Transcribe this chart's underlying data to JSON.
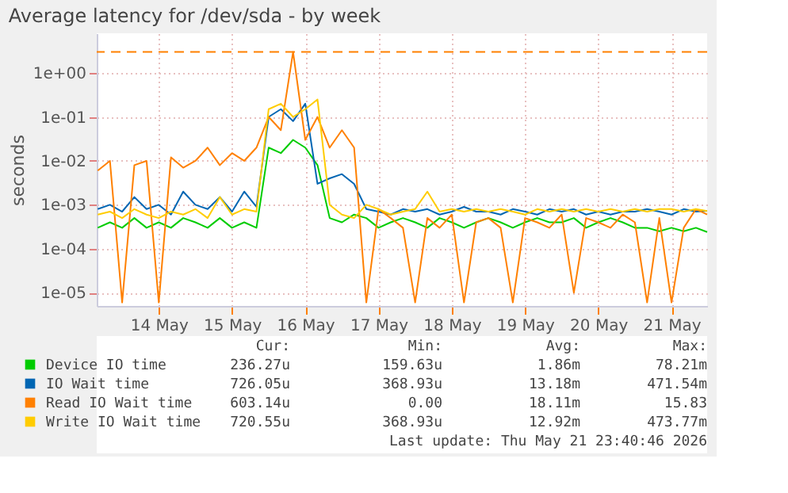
{
  "chart_data": {
    "type": "line",
    "title": "Average latency for /dev/sda - by week",
    "ylabel": "seconds",
    "log": "y",
    "ylim": [
      5e-06,
      8
    ],
    "yticks": [
      {
        "value": 1e-05,
        "label": "1e-05"
      },
      {
        "value": 0.0001,
        "label": "1e-04"
      },
      {
        "value": 0.001,
        "label": "1e-03"
      },
      {
        "value": 0.01,
        "label": "1e-02"
      },
      {
        "value": 0.1,
        "label": "1e-01"
      },
      {
        "value": 1,
        "label": "1e+00"
      }
    ],
    "xlim": [
      "2026-05-13T15:40",
      "2026-05-21T23:40"
    ],
    "xticks": [
      {
        "value": "2026-05-14T12:00",
        "label": "14 May"
      },
      {
        "value": "2026-05-15T12:00",
        "label": "15 May"
      },
      {
        "value": "2026-05-16T12:00",
        "label": "16 May"
      },
      {
        "value": "2026-05-17T12:00",
        "label": "17 May"
      },
      {
        "value": "2026-05-18T12:00",
        "label": "18 May"
      },
      {
        "value": "2026-05-19T12:00",
        "label": "19 May"
      },
      {
        "value": "2026-05-20T12:00",
        "label": "20 May"
      },
      {
        "value": "2026-05-21T12:00",
        "label": "21 May"
      }
    ],
    "grid": true,
    "legend": "bottom",
    "x": [
      "2026-05-13T16:00",
      "2026-05-13T20:00",
      "2026-05-14T00:00",
      "2026-05-14T04:00",
      "2026-05-14T08:00",
      "2026-05-14T12:00",
      "2026-05-14T16:00",
      "2026-05-14T20:00",
      "2026-05-15T00:00",
      "2026-05-15T04:00",
      "2026-05-15T08:00",
      "2026-05-15T12:00",
      "2026-05-15T16:00",
      "2026-05-15T20:00",
      "2026-05-16T00:00",
      "2026-05-16T04:00",
      "2026-05-16T08:00",
      "2026-05-16T12:00",
      "2026-05-16T16:00",
      "2026-05-16T20:00",
      "2026-05-17T00:00",
      "2026-05-17T04:00",
      "2026-05-17T08:00",
      "2026-05-17T12:00",
      "2026-05-17T16:00",
      "2026-05-17T20:00",
      "2026-05-18T00:00",
      "2026-05-18T04:00",
      "2026-05-18T08:00",
      "2026-05-18T12:00",
      "2026-05-18T16:00",
      "2026-05-18T20:00",
      "2026-05-19T00:00",
      "2026-05-19T04:00",
      "2026-05-19T08:00",
      "2026-05-19T12:00",
      "2026-05-19T16:00",
      "2026-05-19T20:00",
      "2026-05-20T00:00",
      "2026-05-20T04:00",
      "2026-05-20T08:00",
      "2026-05-20T12:00",
      "2026-05-20T16:00",
      "2026-05-20T20:00",
      "2026-05-21T00:00",
      "2026-05-21T04:00",
      "2026-05-21T08:00",
      "2026-05-21T12:00",
      "2026-05-21T16:00",
      "2026-05-21T20:00",
      "2026-05-21T23:40"
    ],
    "series": [
      {
        "name": "Device IO time",
        "color": "#00cc00",
        "values": [
          0.0003,
          0.0004,
          0.0003,
          0.0005,
          0.0003,
          0.0004,
          0.0003,
          0.0005,
          0.0004,
          0.0003,
          0.0005,
          0.0003,
          0.0004,
          0.0003,
          0.02,
          0.015,
          0.03,
          0.02,
          0.008,
          0.0005,
          0.0004,
          0.0006,
          0.0005,
          0.0003,
          0.0004,
          0.0005,
          0.0004,
          0.0003,
          0.0005,
          0.0004,
          0.0003,
          0.0004,
          0.0005,
          0.0004,
          0.0003,
          0.0004,
          0.0005,
          0.0004,
          0.0004,
          0.0005,
          0.0003,
          0.0004,
          0.0005,
          0.0004,
          0.0003,
          0.0003,
          0.00025,
          0.0003,
          0.00025,
          0.0003,
          0.00024
        ]
      },
      {
        "name": "IO Wait time",
        "color": "#0066b3",
        "values": [
          0.0008,
          0.001,
          0.0007,
          0.0015,
          0.0008,
          0.001,
          0.0006,
          0.002,
          0.001,
          0.0008,
          0.0015,
          0.0007,
          0.002,
          0.0009,
          0.1,
          0.15,
          0.08,
          0.2,
          0.003,
          0.004,
          0.005,
          0.003,
          0.0008,
          0.0007,
          0.0006,
          0.0008,
          0.0007,
          0.0008,
          0.0006,
          0.0007,
          0.0009,
          0.0007,
          0.0007,
          0.0006,
          0.0008,
          0.0007,
          0.0006,
          0.0008,
          0.0007,
          0.0008,
          0.0006,
          0.0007,
          0.0006,
          0.0007,
          0.0007,
          0.0008,
          0.0007,
          0.0006,
          0.0008,
          0.0007,
          0.00073
        ]
      },
      {
        "name": "Read IO Wait time",
        "color": "#ff8000",
        "values": [
          0.006,
          0.01,
          6e-06,
          0.008,
          0.01,
          6e-06,
          0.012,
          0.007,
          0.01,
          0.02,
          0.008,
          0.015,
          0.01,
          0.02,
          0.1,
          0.05,
          3,
          0.03,
          0.1,
          0.02,
          0.05,
          0.02,
          6e-06,
          0.0008,
          0.0005,
          0.0003,
          6e-06,
          0.0005,
          0.0003,
          0.0006,
          6e-06,
          0.0004,
          0.0005,
          0.0003,
          6e-06,
          0.0005,
          0.0004,
          0.0003,
          0.0006,
          1e-05,
          0.0005,
          0.0004,
          0.0003,
          0.0006,
          0.0004,
          6e-06,
          0.0005,
          6e-06,
          0.0003,
          0.0008,
          0.0006
        ]
      },
      {
        "name": "Write IO Wait time",
        "color": "#ffcc00",
        "values": [
          0.0006,
          0.0007,
          0.0005,
          0.0008,
          0.0006,
          0.0005,
          0.0007,
          0.0006,
          0.0008,
          0.0005,
          0.0015,
          0.0006,
          0.0008,
          0.0007,
          0.15,
          0.2,
          0.1,
          0.15,
          0.25,
          0.001,
          0.0006,
          0.0005,
          0.001,
          0.0008,
          0.0006,
          0.0007,
          0.0008,
          0.002,
          0.0007,
          0.0008,
          0.0007,
          0.0008,
          0.0007,
          0.0008,
          0.0007,
          0.0006,
          0.0008,
          0.0007,
          0.0008,
          0.0007,
          0.0008,
          0.0007,
          0.0008,
          0.0007,
          0.0008,
          0.0007,
          0.0008,
          0.0008,
          0.0007,
          0.0008,
          0.00072
        ]
      }
    ],
    "ref_lines": [
      {
        "axis": "y",
        "value": 3,
        "color": "#ff8000",
        "line_style": "dashed"
      }
    ],
    "annotations": [
      "Cur:",
      "Min:",
      "Avg:",
      "Max:",
      "236.27u",
      "159.63u",
      "1.86m",
      "78.21m",
      "726.05u",
      "368.93u",
      "13.18m",
      "471.54m",
      "603.14u",
      "0.00",
      "18.11m",
      "15.83",
      "720.55u",
      "368.93u",
      "12.92m",
      "473.77m",
      "Last update: Thu May 21 23:40:46 2026"
    ]
  }
}
